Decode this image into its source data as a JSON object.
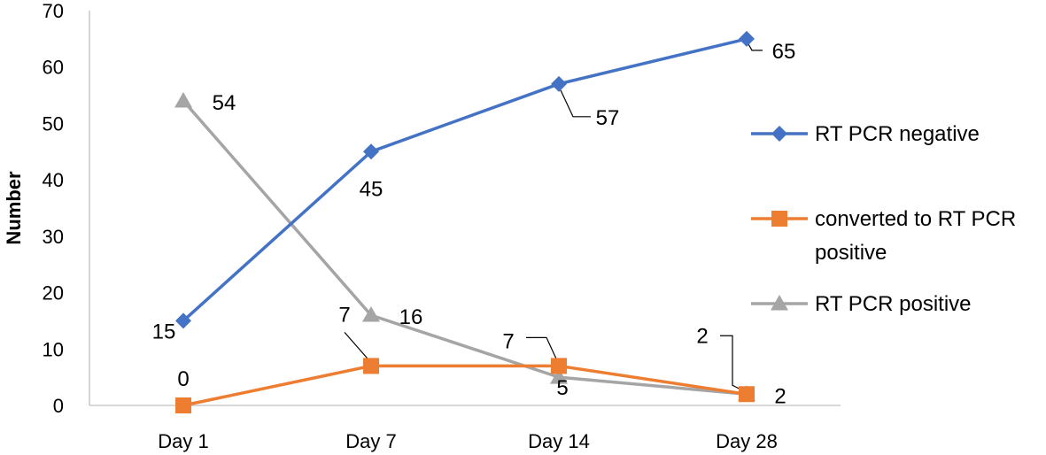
{
  "chart_data": {
    "type": "line",
    "categories": [
      "Day 1",
      "Day 7",
      "Day 14",
      "Day 28"
    ],
    "ylabel": "Number",
    "ylim": [
      0,
      70
    ],
    "yticks": [
      0,
      10,
      20,
      30,
      40,
      50,
      60,
      70
    ],
    "grid": false,
    "legend_position": "right",
    "series": [
      {
        "name": "RT PCR negative",
        "values": [
          15,
          45,
          57,
          65
        ],
        "color": "#4472C4",
        "marker": "diamond",
        "labels": [
          "15",
          "45",
          "57",
          "65"
        ]
      },
      {
        "name": "converted to RT PCR positive",
        "values": [
          0,
          7,
          7,
          2
        ],
        "color": "#ED7D31",
        "marker": "square",
        "labels": [
          "0",
          "7",
          "7",
          "2"
        ]
      },
      {
        "name": "RT PCR positive",
        "values": [
          54,
          16,
          5,
          2
        ],
        "color": "#A5A5A5",
        "marker": "triangle",
        "labels": [
          "54",
          "16",
          "5",
          "2"
        ]
      }
    ]
  }
}
